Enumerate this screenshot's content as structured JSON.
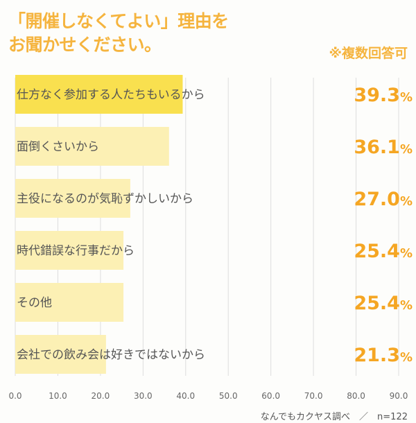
{
  "chart_data": {
    "type": "bar",
    "orientation": "horizontal",
    "title": "「開催しなくてよい」理由を お聞かせください。",
    "title_lines": [
      "「開催しなくてよい」理由を",
      "お聞かせください。"
    ],
    "note": "※複数回答可",
    "source": "なんでもカクヤス調べ　／　n=122",
    "categories": [
      "仕方なく参加する人たちもいるから",
      "面倒くさいから",
      "主役になるのが気恥ずかしいから",
      "時代錯誤な行事だから",
      "その他",
      "会社での飲み会は好きではないから"
    ],
    "values": [
      39.3,
      36.1,
      27.0,
      25.4,
      25.4,
      21.3
    ],
    "value_labels": [
      "39.3",
      "36.1",
      "27.0",
      "25.4",
      "25.4",
      "21.3"
    ],
    "unit": "%",
    "xlim": [
      0,
      90
    ],
    "xticks": [
      "0.0",
      "10.0",
      "20.0",
      "30.0",
      "40.0",
      "50.0",
      "60.0",
      "70.0",
      "80.0",
      "90.0"
    ],
    "grid": true,
    "colors": {
      "top_bar": "#f9e04f",
      "bar": "#fcf0b4",
      "accent": "#f5a623",
      "title": "#f5b43e",
      "grid": "#dddddd"
    }
  }
}
